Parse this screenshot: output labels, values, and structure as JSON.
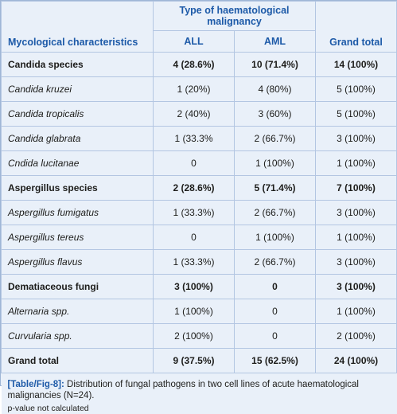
{
  "header": {
    "group_label": "Type of haematological malignancy",
    "row_label": "Mycological characteristics",
    "col_all": "ALL",
    "col_aml": "AML",
    "col_total": "Grand total"
  },
  "rows": [
    {
      "label": "Candida species",
      "all": "4 (28.6%)",
      "aml": "10 (71.4%)",
      "total": "14 (100%)",
      "bold": true
    },
    {
      "label": "Candida kruzei",
      "all": "1 (20%)",
      "aml": "4 (80%)",
      "total": "5 (100%)",
      "bold": false
    },
    {
      "label": "Candida tropicalis",
      "all": "2 (40%)",
      "aml": "3 (60%)",
      "total": "5 (100%)",
      "bold": false
    },
    {
      "label": "Candida glabrata",
      "all": "1 (33.3%",
      "aml": "2 (66.7%)",
      "total": "3 (100%)",
      "bold": false
    },
    {
      "label": "Cndida lucitanae",
      "all": "0",
      "aml": "1 (100%)",
      "total": "1 (100%)",
      "bold": false
    },
    {
      "label": "Aspergillus species",
      "all": "2 (28.6%)",
      "aml": "5 (71.4%)",
      "total": "7 (100%)",
      "bold": true
    },
    {
      "label": "Aspergillus fumigatus",
      "all": "1 (33.3%)",
      "aml": "2 (66.7%)",
      "total": "3 (100%)",
      "bold": false
    },
    {
      "label": "Aspergillus tereus",
      "all": "0",
      "aml": "1 (100%)",
      "total": "1 (100%)",
      "bold": false
    },
    {
      "label": "Aspergillus flavus",
      "all": "1 (33.3%)",
      "aml": "2 (66.7%)",
      "total": "3 (100%)",
      "bold": false
    },
    {
      "label": "Dematiaceous fungi",
      "all": "3 (100%)",
      "aml": "0",
      "total": "3 (100%)",
      "bold": true
    },
    {
      "label": "Alternaria spp.",
      "all": "1 (100%)",
      "aml": "0",
      "total": "1 (100%)",
      "bold": false
    },
    {
      "label": "Curvularia spp.",
      "all": "2 (100%)",
      "aml": "0",
      "total": "2 (100%)",
      "bold": false
    },
    {
      "label": "Grand total",
      "all": "9 (37.5%)",
      "aml": "15 (62.5%)",
      "total": "24 (100%)",
      "bold": true
    }
  ],
  "caption": {
    "label": "[Table/Fig-8]:",
    "text": " Distribution of fungal pathogens in two cell lines of acute haematological malignancies (N=24).",
    "note": "p-value not calculated"
  }
}
